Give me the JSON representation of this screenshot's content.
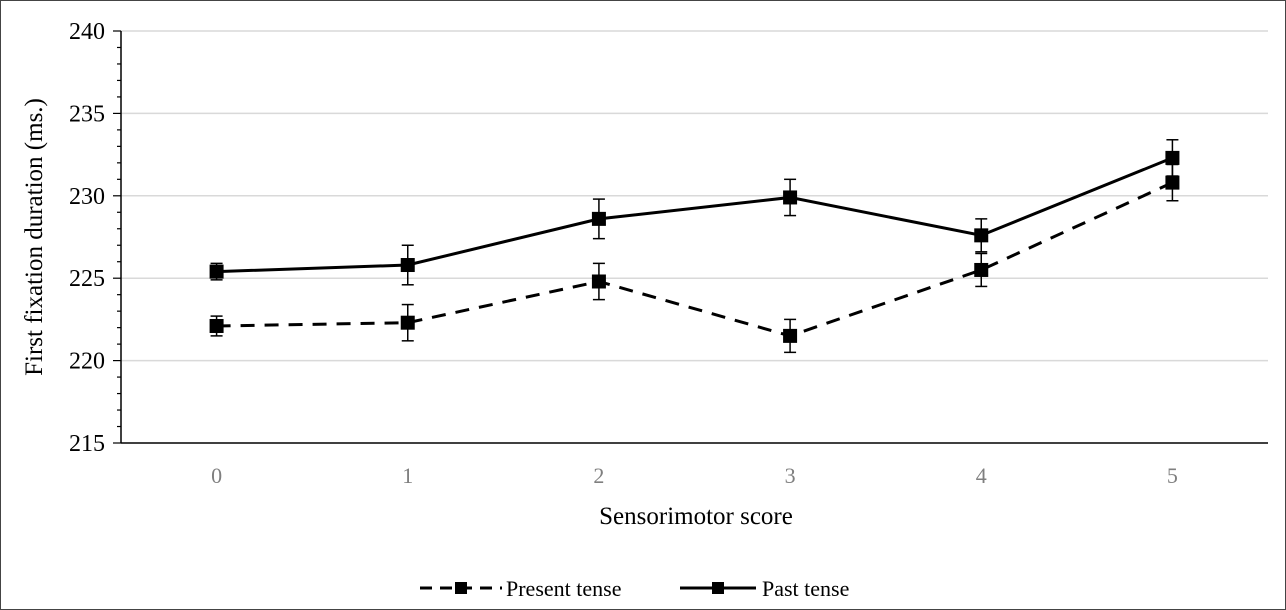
{
  "chart_data": {
    "type": "line",
    "title": "",
    "xlabel": "Sensorimotor score",
    "ylabel": "First fixation duration (ms.)",
    "categories": [
      "0",
      "1",
      "2",
      "3",
      "4",
      "5"
    ],
    "ylim": [
      215,
      240
    ],
    "yticks": [
      215,
      220,
      225,
      230,
      235,
      240
    ],
    "grid": "horizontal",
    "legend_position": "bottom",
    "series": [
      {
        "name": "Present tense",
        "style": "dashed",
        "marker": "square",
        "color": "#000000",
        "values": [
          222.1,
          222.3,
          224.8,
          221.5,
          225.5,
          230.8
        ],
        "error": [
          0.6,
          1.1,
          1.1,
          1.0,
          1.0,
          1.1
        ]
      },
      {
        "name": "Past tense",
        "style": "solid",
        "marker": "square",
        "color": "#000000",
        "values": [
          225.4,
          225.8,
          228.6,
          229.9,
          227.6,
          232.3
        ],
        "error": [
          0.5,
          1.2,
          1.2,
          1.1,
          1.0,
          1.1
        ]
      }
    ]
  }
}
